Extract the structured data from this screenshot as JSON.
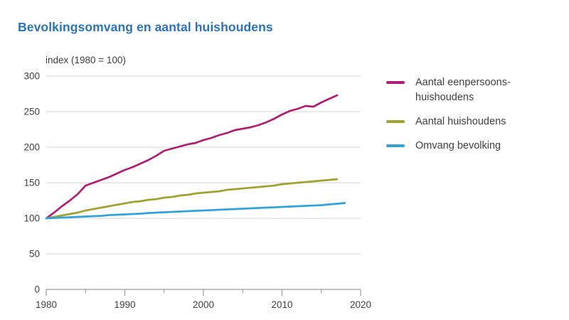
{
  "header": {
    "title": "Bevolkingsomvang en aantal huishoudens"
  },
  "chart_data": {
    "type": "line",
    "title": "Bevolkingsomvang en aantal huishoudens",
    "ylabel_note": "index (1980 = 100)",
    "xlim": [
      1980,
      2020
    ],
    "ylim": [
      0,
      300
    ],
    "y_ticks": [
      0,
      50,
      100,
      150,
      200,
      250,
      300
    ],
    "x_major_ticks": [
      1980,
      1990,
      2000,
      2010,
      2020
    ],
    "x_minor_ticks": [
      1985,
      1995,
      2005,
      2015
    ],
    "grid": "horizontal",
    "legend_position": "right",
    "colors": {
      "title": "#2a74b5",
      "gridline": "#dcdcdc",
      "axis": "#9b9b9b",
      "tick_text": "#404040",
      "single_person_households": "#b01d72",
      "households": "#a0a12f",
      "population": "#30a4da"
    },
    "series": [
      {
        "name": "Aantal eenpersoons-huishoudens",
        "legend_lines": [
          "Aantal eenpersoons-",
          "huishoudens"
        ],
        "color": "#b01d72",
        "x_start": 1980,
        "x_step": 1,
        "values": [
          100,
          108,
          117,
          125,
          134,
          146,
          150,
          154,
          158,
          163,
          168,
          172,
          177,
          182,
          188,
          195,
          198,
          201,
          204,
          206,
          210,
          213,
          217,
          220,
          224,
          226,
          228,
          231,
          235,
          240,
          246,
          251,
          254,
          258,
          257,
          263,
          268,
          273
        ]
      },
      {
        "name": "Aantal huishoudens",
        "legend_lines": [
          "Aantal huishoudens"
        ],
        "color": "#a0a12f",
        "x_start": 1980,
        "x_step": 1,
        "values": [
          100,
          102,
          104,
          106,
          108,
          111,
          113,
          115,
          117,
          119,
          121,
          123,
          124,
          126,
          127,
          129,
          130,
          132,
          133,
          135,
          136,
          137,
          138,
          140,
          141,
          142,
          143,
          144,
          145,
          146,
          148,
          149,
          150,
          151,
          152,
          153,
          154,
          155
        ]
      },
      {
        "name": "Omvang bevolking",
        "legend_lines": [
          "Omvang bevolking"
        ],
        "color": "#30a4da",
        "x_start": 1980,
        "x_step": 1,
        "values": [
          100,
          100.5,
          101,
          101.5,
          102,
          102.5,
          103,
          103.5,
          104.5,
          105,
          105.5,
          106,
          106.5,
          107.5,
          108,
          108.5,
          109,
          109.5,
          110,
          110.5,
          111,
          111.5,
          112,
          112.5,
          113,
          113.5,
          114,
          114.5,
          115,
          115.5,
          116,
          116.5,
          117,
          117.5,
          118,
          118.5,
          119.5,
          120.5,
          121.5
        ]
      }
    ]
  }
}
